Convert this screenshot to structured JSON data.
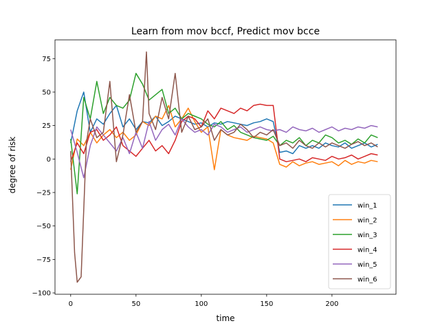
{
  "chart_data": {
    "type": "line",
    "title": "Learn from mov bccf, Predict mov bcce",
    "xlabel": "time",
    "ylabel": "degree of risk",
    "xlim": [
      -12,
      249
    ],
    "ylim": [
      -101,
      89
    ],
    "xticks": [
      0,
      50,
      100,
      150,
      200
    ],
    "yticks": [
      75,
      50,
      25,
      0,
      -25,
      -50,
      -75,
      -100
    ],
    "ytick_labels": [
      "75",
      "50",
      "25",
      "0",
      "−25",
      "−50",
      "−75",
      "−100"
    ],
    "grid": false,
    "legend_position": "lower-right",
    "series": [
      {
        "name": "win_1",
        "color": "#1f77b4",
        "x": [
          0,
          5,
          10,
          15,
          20,
          25,
          30,
          35,
          40,
          45,
          50,
          55,
          60,
          65,
          70,
          75,
          80,
          85,
          90,
          95,
          100,
          105,
          110,
          115,
          120,
          125,
          130,
          135,
          140,
          145,
          150,
          155,
          160,
          165,
          170,
          175,
          180,
          185,
          190,
          195,
          200,
          205,
          210,
          215,
          220,
          225,
          230,
          235
        ],
        "y": [
          12,
          36,
          50,
          20,
          30,
          26,
          34,
          40,
          24,
          30,
          22,
          28,
          27,
          32,
          25,
          28,
          32,
          30,
          28,
          26,
          27,
          24,
          27,
          26,
          28,
          27,
          26,
          25,
          27,
          28,
          30,
          28,
          5,
          6,
          4,
          10,
          8,
          10,
          8,
          12,
          10,
          9,
          12,
          8,
          10,
          12,
          9,
          11
        ]
      },
      {
        "name": "win_2",
        "color": "#ff7f0e",
        "x": [
          0,
          5,
          10,
          15,
          20,
          25,
          30,
          35,
          40,
          45,
          50,
          55,
          60,
          65,
          70,
          75,
          80,
          85,
          90,
          95,
          100,
          105,
          110,
          115,
          120,
          125,
          130,
          135,
          140,
          145,
          150,
          155,
          160,
          165,
          170,
          175,
          180,
          185,
          190,
          195,
          200,
          205,
          210,
          215,
          220,
          225,
          230,
          235
        ],
        "y": [
          -8,
          15,
          10,
          20,
          12,
          18,
          22,
          16,
          20,
          14,
          18,
          28,
          25,
          32,
          30,
          40,
          24,
          30,
          38,
          28,
          20,
          24,
          -8,
          22,
          18,
          16,
          15,
          14,
          17,
          16,
          15,
          12,
          -4,
          -6,
          -2,
          -5,
          -3,
          -2,
          -4,
          -3,
          -2,
          -5,
          -1,
          -4,
          -2,
          -3,
          -1,
          -2
        ]
      },
      {
        "name": "win_3",
        "color": "#2ca02c",
        "x": [
          0,
          5,
          10,
          15,
          20,
          25,
          30,
          35,
          40,
          45,
          50,
          55,
          60,
          65,
          70,
          75,
          80,
          85,
          90,
          95,
          100,
          105,
          110,
          115,
          120,
          125,
          130,
          135,
          140,
          145,
          150,
          155,
          160,
          165,
          170,
          175,
          180,
          185,
          190,
          195,
          200,
          205,
          210,
          215,
          220,
          225,
          230,
          235
        ],
        "y": [
          15,
          -26,
          46,
          30,
          58,
          34,
          46,
          40,
          38,
          44,
          64,
          56,
          44,
          48,
          52,
          34,
          38,
          30,
          34,
          32,
          30,
          26,
          24,
          28,
          22,
          25,
          20,
          18,
          16,
          15,
          14,
          17,
          10,
          14,
          12,
          16,
          10,
          14,
          12,
          18,
          16,
          12,
          14,
          11,
          15,
          12,
          18,
          16
        ]
      },
      {
        "name": "win_4",
        "color": "#d62728",
        "x": [
          0,
          5,
          10,
          15,
          20,
          25,
          30,
          35,
          40,
          45,
          50,
          55,
          60,
          65,
          70,
          75,
          80,
          85,
          90,
          95,
          100,
          105,
          110,
          115,
          120,
          125,
          130,
          135,
          140,
          145,
          150,
          155,
          160,
          165,
          170,
          175,
          180,
          185,
          190,
          195,
          200,
          205,
          210,
          215,
          220,
          225,
          230,
          235
        ],
        "y": [
          -2,
          12,
          4,
          20,
          22,
          14,
          18,
          24,
          10,
          6,
          2,
          8,
          14,
          6,
          10,
          4,
          14,
          28,
          32,
          30,
          24,
          36,
          30,
          38,
          36,
          34,
          38,
          36,
          40,
          41,
          40,
          40,
          0,
          -2,
          -1,
          0,
          -2,
          1,
          0,
          -1,
          2,
          0,
          1,
          3,
          0,
          2,
          4,
          3
        ]
      },
      {
        "name": "win_5",
        "color": "#9467bd",
        "x": [
          0,
          5,
          10,
          15,
          20,
          25,
          30,
          35,
          40,
          45,
          50,
          55,
          60,
          65,
          70,
          75,
          80,
          85,
          90,
          95,
          100,
          105,
          110,
          115,
          120,
          125,
          130,
          135,
          140,
          145,
          150,
          155,
          160,
          165,
          170,
          175,
          180,
          185,
          190,
          195,
          200,
          205,
          210,
          215,
          220,
          225,
          230,
          235
        ],
        "y": [
          22,
          5,
          -14,
          10,
          24,
          18,
          12,
          6,
          16,
          4,
          20,
          8,
          28,
          14,
          22,
          26,
          18,
          30,
          24,
          20,
          22,
          18,
          26,
          24,
          20,
          22,
          24,
          20,
          22,
          24,
          22,
          21,
          22,
          20,
          24,
          22,
          21,
          23,
          20,
          22,
          24,
          21,
          23,
          22,
          24,
          23,
          25,
          24
        ]
      },
      {
        "name": "win_6",
        "color": "#8c564b",
        "x": [
          0,
          3,
          5,
          8,
          12,
          15,
          20,
          25,
          30,
          35,
          40,
          45,
          50,
          55,
          58,
          60,
          65,
          70,
          75,
          80,
          85,
          90,
          95,
          100,
          105,
          110,
          115,
          120,
          125,
          130,
          135,
          140,
          145,
          150,
          155,
          160,
          165,
          170,
          175,
          180,
          185,
          190,
          195,
          200,
          205,
          210,
          215,
          220,
          225,
          230,
          235
        ],
        "y": [
          6,
          -70,
          -92,
          -88,
          12,
          30,
          16,
          20,
          58,
          -2,
          18,
          48,
          20,
          28,
          80,
          34,
          22,
          46,
          30,
          64,
          20,
          32,
          22,
          24,
          30,
          14,
          22,
          18,
          20,
          26,
          22,
          16,
          20,
          18,
          22,
          10,
          12,
          8,
          14,
          10,
          8,
          12,
          9,
          12,
          10,
          8,
          11,
          13,
          10,
          12,
          9
        ]
      }
    ]
  }
}
